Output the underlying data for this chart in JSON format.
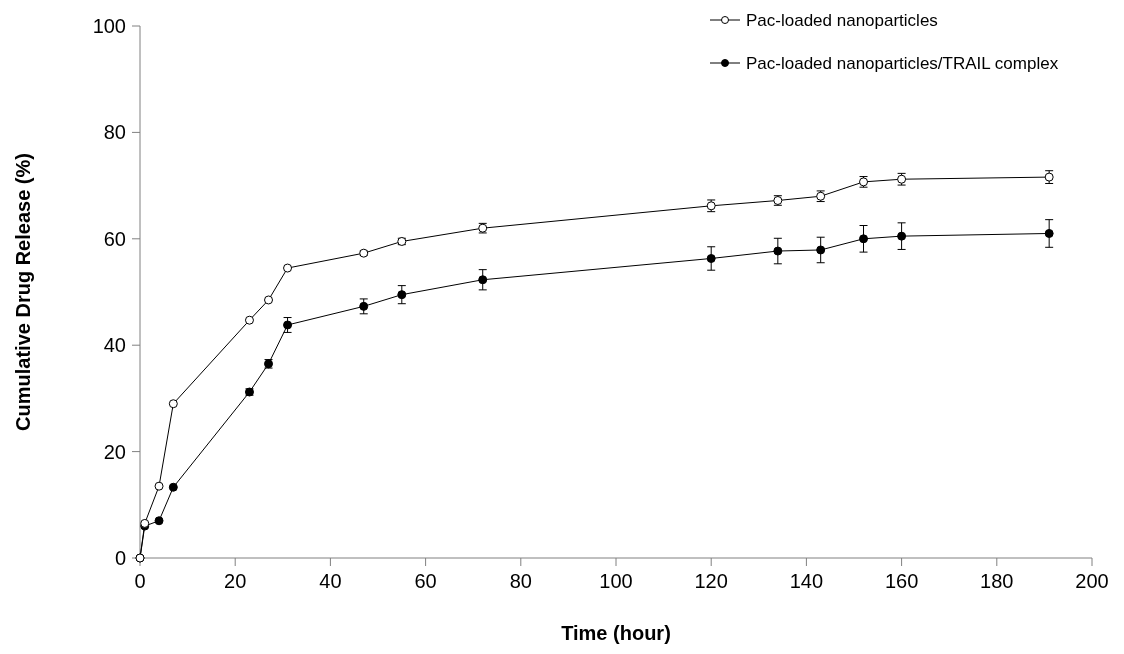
{
  "chart_data": {
    "type": "line",
    "xlabel": "Time (hour)",
    "ylabel": "Cumulative Drug Release (%)",
    "xlim": [
      0,
      200
    ],
    "xticks": [
      0,
      20,
      40,
      60,
      80,
      100,
      120,
      140,
      160,
      180,
      200
    ],
    "ylim": [
      0,
      100
    ],
    "yticks": [
      0,
      20,
      40,
      60,
      80,
      100
    ],
    "x": [
      0,
      1,
      4,
      7,
      23,
      27,
      31,
      47,
      55,
      72,
      120,
      134,
      143,
      152,
      160,
      191
    ],
    "series": [
      {
        "name": "Pac-loaded nanoparticles",
        "color": "#ffffff",
        "values": [
          0,
          6.5,
          13.5,
          29,
          44.7,
          48.5,
          54.5,
          57.3,
          59.5,
          62,
          66.2,
          67.2,
          68,
          70.7,
          71.2,
          71.6
        ],
        "errors": [
          null,
          null,
          null,
          null,
          null,
          null,
          null,
          0.4,
          0.6,
          0.9,
          1.1,
          0.9,
          1,
          1,
          1.1,
          1.2
        ]
      },
      {
        "name": "Pac-loaded nanoparticles/TRAIL complex",
        "color": "#000000",
        "values": [
          0,
          6,
          7,
          13.3,
          31.2,
          36.5,
          43.8,
          47.3,
          49.5,
          52.3,
          56.3,
          57.7,
          57.9,
          60,
          60.5,
          61
        ],
        "errors": [
          null,
          null,
          null,
          null,
          0.6,
          0.8,
          1.4,
          1.4,
          1.7,
          1.9,
          2.2,
          2.4,
          2.4,
          2.5,
          2.5,
          2.6
        ]
      }
    ],
    "marker": "circle",
    "legend": "top right",
    "grid": false
  }
}
